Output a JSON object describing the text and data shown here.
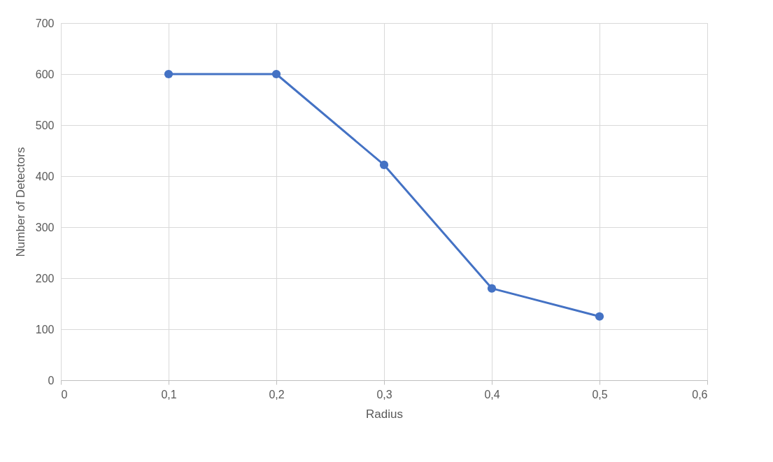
{
  "chart_data": {
    "type": "line",
    "xlabel": "Radius",
    "ylabel": "Number of Detectors",
    "x": [
      0.1,
      0.2,
      0.3,
      0.4,
      0.5
    ],
    "series": [
      {
        "color": "#4472c4",
        "values": [
          600,
          600,
          422,
          180,
          125
        ]
      }
    ],
    "xlim": [
      0,
      0.6
    ],
    "xticks": [
      0,
      {
        "value": 0.1,
        "label": "0,1"
      },
      {
        "value": 0.2,
        "label": "0,2"
      },
      {
        "value": 0.3,
        "label": "0,3"
      },
      {
        "value": 0.4,
        "label": "0,4"
      },
      {
        "value": 0.5,
        "label": "0,5"
      },
      {
        "value": 0.6,
        "label": "0,6"
      }
    ],
    "ylim": [
      0,
      700
    ],
    "yticks": [
      0,
      100,
      200,
      300,
      400,
      500,
      600,
      700
    ],
    "grid": true,
    "marker": "circle",
    "line_style": "solid"
  }
}
